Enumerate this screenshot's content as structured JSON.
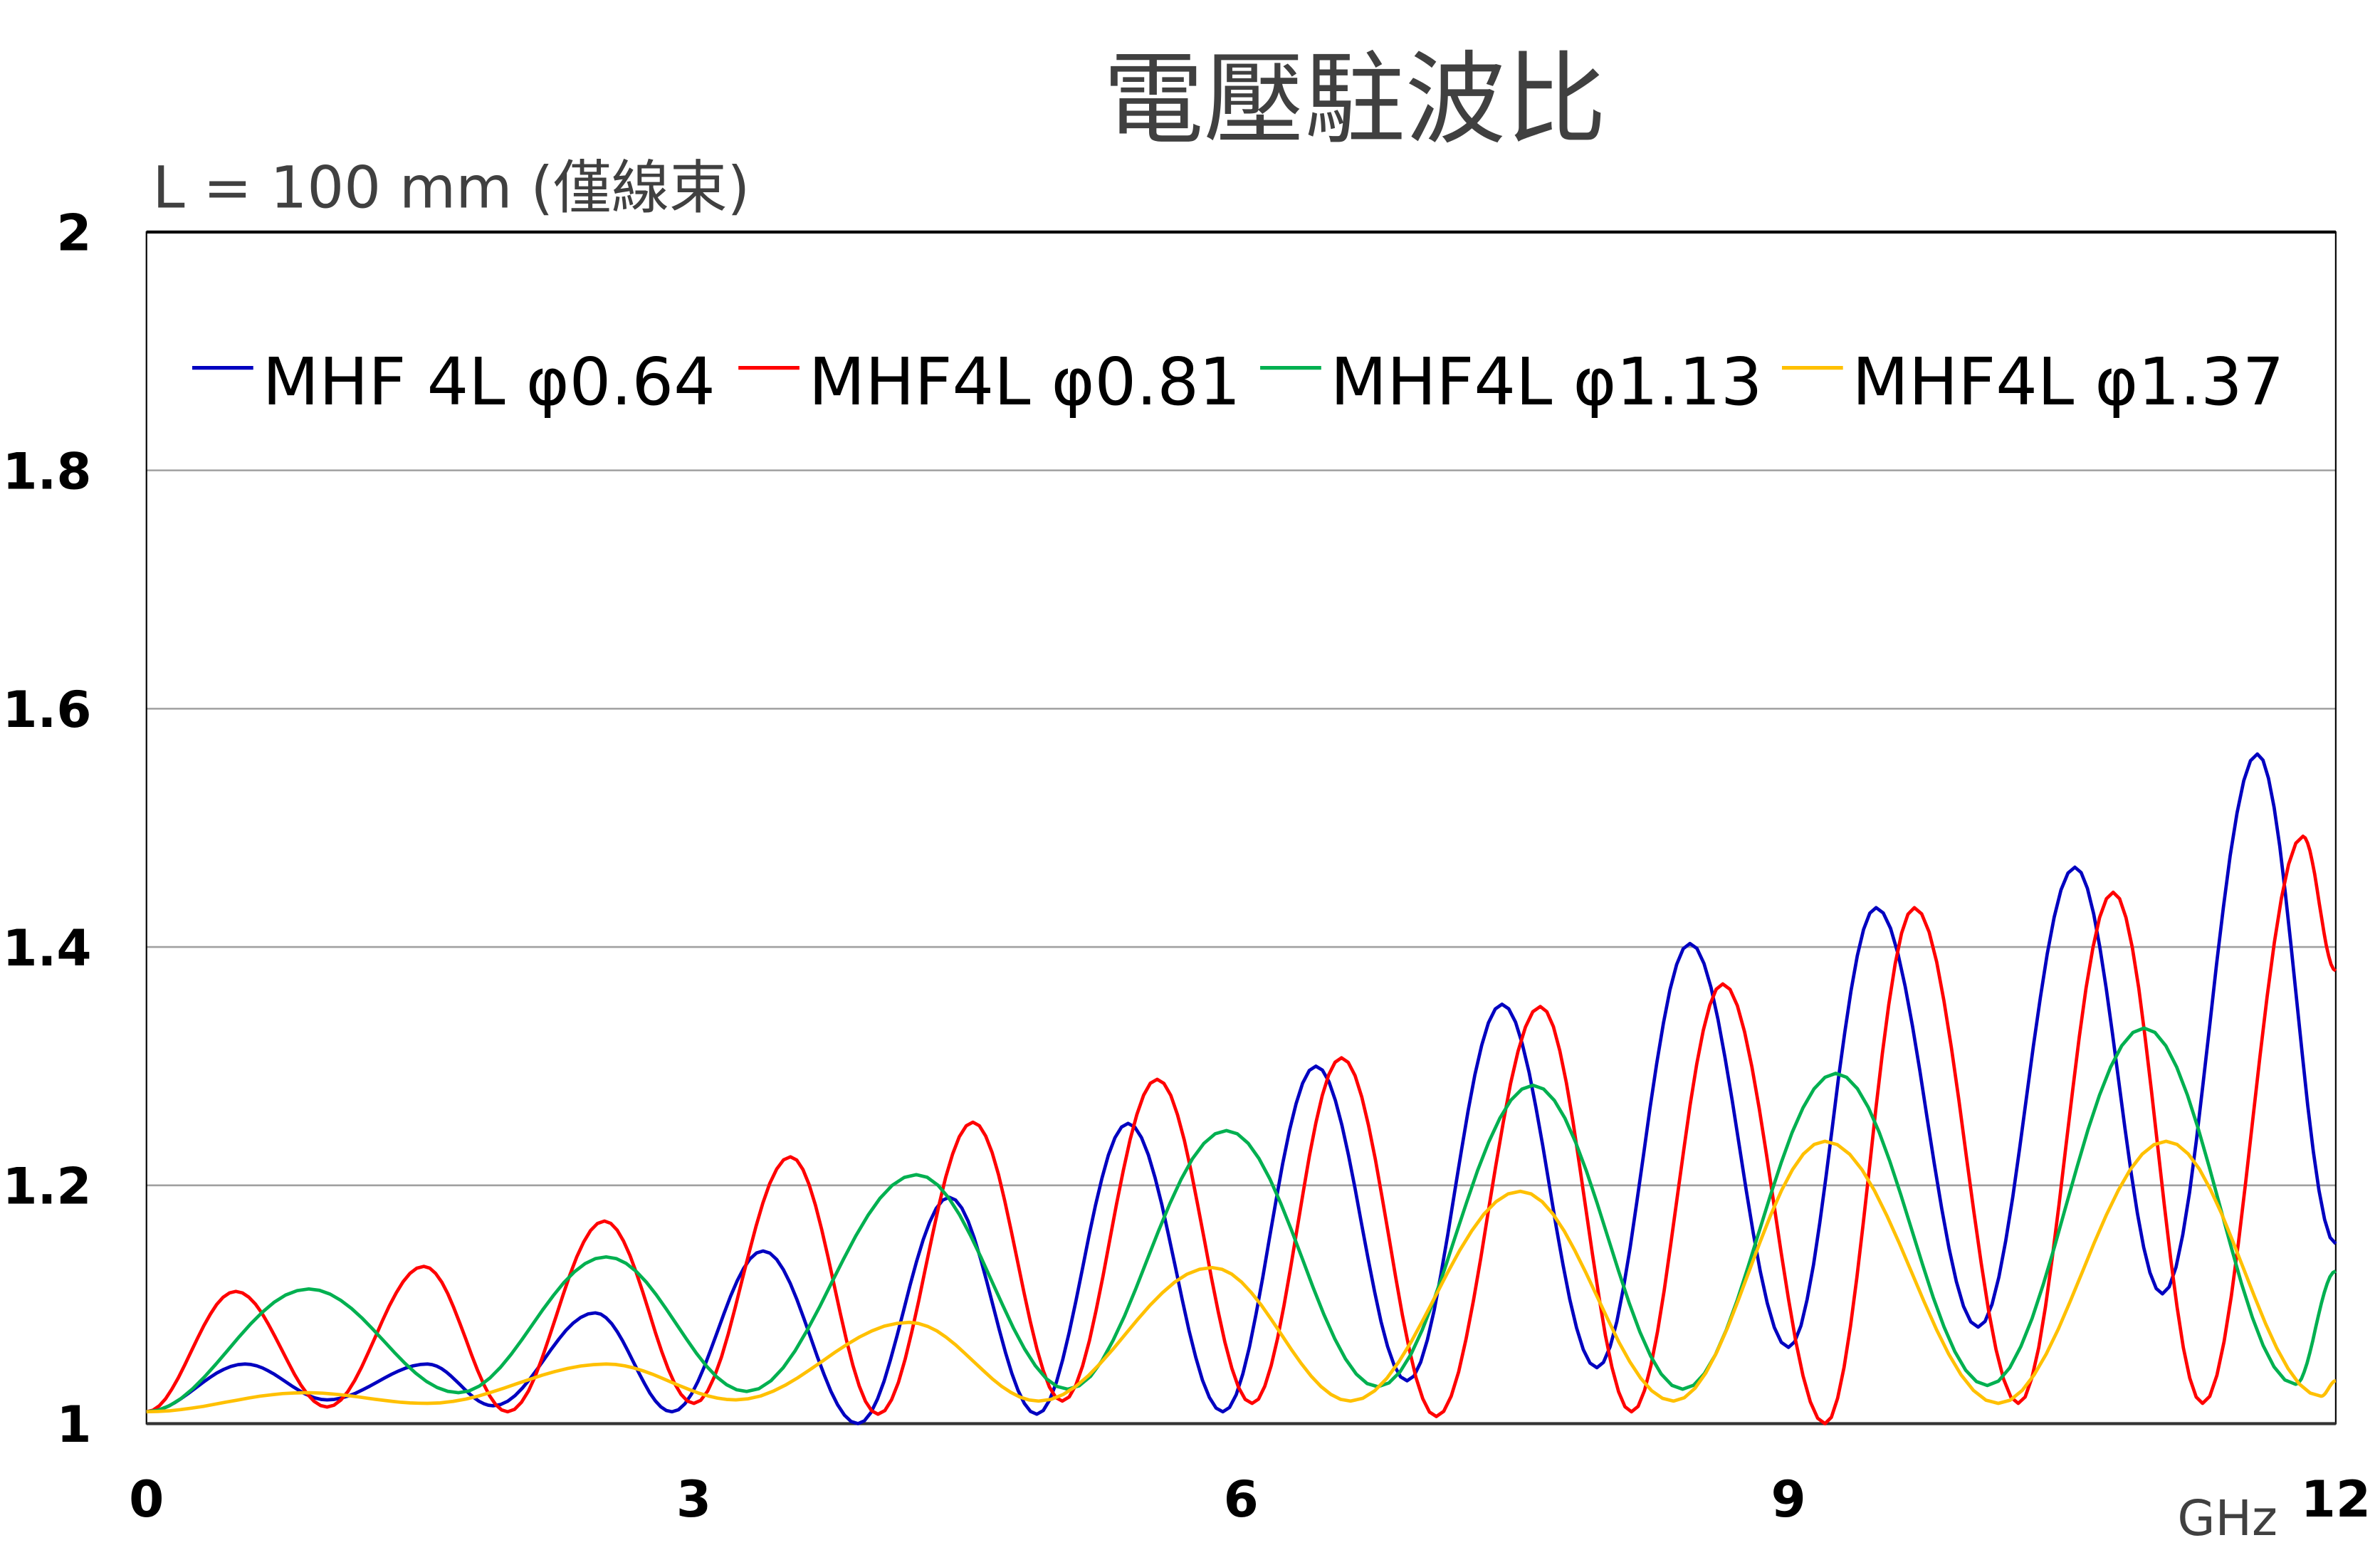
{
  "chart_data": {
    "type": "line",
    "title": "電壓駐波比",
    "subtitle": "L = 100 mm (僅線束)",
    "xlabel": "GHz",
    "ylabel": "",
    "xlim": [
      0,
      12
    ],
    "ylim": [
      1,
      2
    ],
    "xticks": [
      "0",
      "3",
      "6",
      "9",
      "12"
    ],
    "yticks": [
      "1",
      "1.2",
      "1.4",
      "1.6",
      "1.8",
      "2"
    ],
    "grid": true,
    "legend_position": "top",
    "series": [
      {
        "name": "MHF 4L φ0.64",
        "color": "#0000C0",
        "x": [
          0,
          0.54,
          0.99,
          1.54,
          1.9,
          2.46,
          2.88,
          3.38,
          3.9,
          4.4,
          4.88,
          5.38,
          5.9,
          6.41,
          6.91,
          7.43,
          7.95,
          8.46,
          9.0,
          9.48,
          10.04,
          10.57,
          11.05,
          11.57,
          12
        ],
        "y": [
          1.01,
          1.05,
          1.02,
          1.05,
          1.015,
          1.093,
          1.01,
          1.145,
          1.0,
          1.19,
          1.008,
          1.252,
          1.01,
          1.3,
          1.036,
          1.352,
          1.047,
          1.403,
          1.064,
          1.433,
          1.081,
          1.467,
          1.109,
          1.562,
          1.151
        ]
      },
      {
        "name": "MHF4L φ0.81",
        "color": "#FF0000",
        "x": [
          0,
          0.49,
          0.99,
          1.52,
          1.98,
          2.51,
          3.0,
          3.53,
          4.01,
          4.53,
          5.02,
          5.54,
          6.06,
          6.55,
          7.07,
          7.64,
          8.14,
          8.64,
          9.2,
          9.69,
          10.26,
          10.78,
          11.27,
          11.82,
          12
        ],
        "y": [
          1.01,
          1.111,
          1.014,
          1.132,
          1.01,
          1.17,
          1.017,
          1.224,
          1.008,
          1.253,
          1.019,
          1.289,
          1.017,
          1.307,
          1.006,
          1.35,
          1.01,
          1.369,
          1.0,
          1.433,
          1.017,
          1.446,
          1.017,
          1.493,
          1.38
        ]
      },
      {
        "name": "MHF4L φ1.13",
        "color": "#00B050",
        "x": [
          0,
          0.89,
          1.71,
          2.52,
          3.29,
          4.22,
          5.05,
          5.92,
          6.75,
          7.6,
          8.42,
          9.26,
          10.09,
          10.95,
          11.78,
          12
        ],
        "y": [
          1.01,
          1.113,
          1.026,
          1.14,
          1.027,
          1.209,
          1.029,
          1.246,
          1.031,
          1.284,
          1.029,
          1.294,
          1.032,
          1.332,
          1.033,
          1.128
        ]
      },
      {
        "name": "MHF4L φ1.37",
        "color": "#FFC000",
        "x": [
          0,
          0.87,
          1.54,
          2.52,
          3.23,
          4.18,
          4.89,
          5.84,
          6.6,
          7.53,
          8.37,
          9.2,
          10.15,
          11.07,
          11.92,
          12
        ],
        "y": [
          1.01,
          1.026,
          1.017,
          1.05,
          1.02,
          1.085,
          1.019,
          1.131,
          1.019,
          1.195,
          1.019,
          1.237,
          1.017,
          1.237,
          1.023,
          1.036
        ]
      }
    ]
  }
}
